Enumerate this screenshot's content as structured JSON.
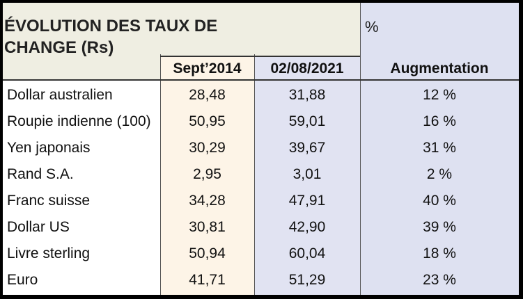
{
  "title": "ÉVOLUTION DES TAUX DE CHANGE (Rs)",
  "unit": "%",
  "table": {
    "columns": [
      "Sept’2014",
      "02/08/2021",
      "Augmentation"
    ],
    "rows": [
      [
        "Dollar australien",
        "28,48",
        "31,88",
        "12 %"
      ],
      [
        "Roupie indienne (100)",
        "50,95",
        "59,01",
        "16 %"
      ],
      [
        "Yen japonais",
        "30,29",
        "39,67",
        "31 %"
      ],
      [
        "Rand S.A.",
        "2,95",
        "3,01",
        "2 %"
      ],
      [
        "Franc suisse",
        "34,28",
        "47,91",
        "40 %"
      ],
      [
        "Dollar US",
        "30,81",
        "42,90",
        "39 %"
      ],
      [
        "Livre sterling",
        "50,94",
        "60,04",
        "18 %"
      ],
      [
        "Euro",
        "41,71",
        "51,29",
        "23 %"
      ]
    ]
  }
}
